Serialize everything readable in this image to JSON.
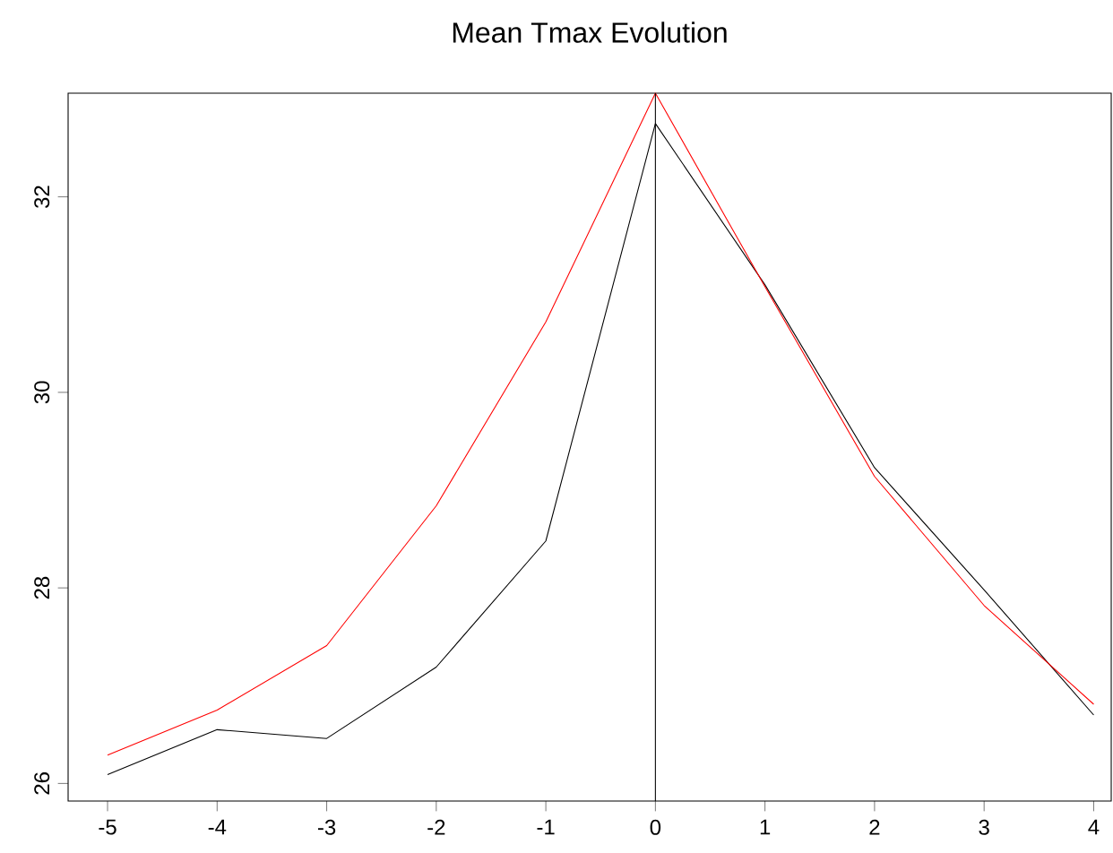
{
  "chart_data": {
    "type": "line",
    "title": "Mean Tmax Evolution",
    "x": [
      -5,
      -4,
      -3,
      -2,
      -1,
      0,
      1,
      2,
      3,
      4
    ],
    "series": [
      {
        "color": "#000000",
        "values": [
          26.09,
          26.55,
          26.46,
          27.19,
          28.48,
          32.75,
          31.1,
          29.23,
          27.98,
          26.7
        ]
      },
      {
        "color": "#ff0000",
        "values": [
          26.29,
          26.75,
          27.41,
          28.84,
          30.72,
          33.06,
          31.08,
          29.14,
          27.82,
          26.81
        ]
      }
    ],
    "xlim": [
      -5.36,
      4.16
    ],
    "ylim": [
      25.82,
      33.06
    ],
    "xticks": [
      -5,
      -4,
      -3,
      -2,
      -1,
      0,
      1,
      2,
      3,
      4
    ],
    "yticks": [
      26,
      28,
      30,
      32
    ],
    "ref_lines": [
      {
        "axis": "x",
        "value": 0,
        "color": "#000000"
      }
    ],
    "grid": false,
    "marker": "none",
    "line_style": "solid"
  }
}
